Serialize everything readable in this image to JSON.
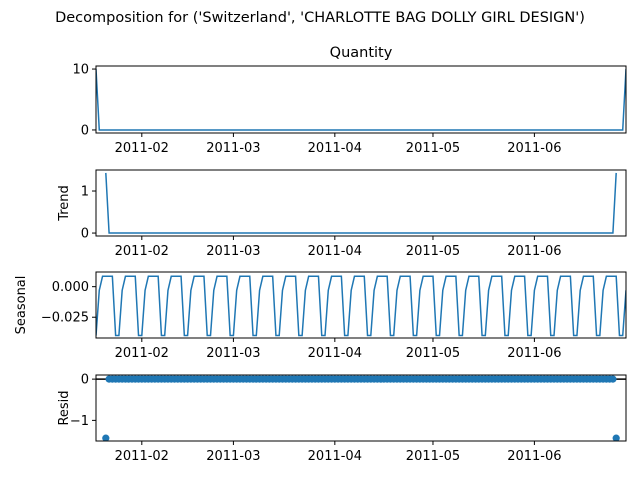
{
  "chart_data": {
    "type": "line",
    "title": "Decomposition for ('Switzerland', 'CHARLOTTE BAG DOLLY GIRL DESIGN')",
    "line_color": "#1f77b4",
    "x_axis": {
      "start": "2011-01-18",
      "end": "2011-06-29",
      "tick_labels": [
        "2011-02",
        "2011-03",
        "2011-04",
        "2011-05",
        "2011-06"
      ],
      "tick_dates": [
        "2011-02-01",
        "2011-03-01",
        "2011-04-01",
        "2011-05-01",
        "2011-06-01"
      ]
    },
    "panels": [
      {
        "id": "observed",
        "title": "Quantity",
        "ylabel": "",
        "kind": "line",
        "ylim": [
          -0.5,
          10.5
        ],
        "yticks": [
          0,
          10
        ],
        "series": [
          {
            "x": "2011-01-18",
            "y": 10
          },
          {
            "x": "2011-01-19",
            "y": 0
          },
          {
            "x": "2011-06-28",
            "y": 0
          },
          {
            "x": "2011-06-29",
            "y": 10
          }
        ]
      },
      {
        "id": "trend",
        "title": "",
        "ylabel": "Trend",
        "kind": "line",
        "ylim": [
          -0.07,
          1.5
        ],
        "yticks": [
          0,
          1
        ],
        "series": [
          {
            "x": "2011-01-21",
            "y": 1.43
          },
          {
            "x": "2011-01-22",
            "y": 0
          },
          {
            "x": "2011-06-25",
            "y": 0
          },
          {
            "x": "2011-06-26",
            "y": 1.43
          }
        ]
      },
      {
        "id": "seasonal",
        "title": "",
        "ylabel": "Seasonal",
        "kind": "seasonal",
        "ylim": [
          -0.042,
          0.012
        ],
        "yticks": [
          0.0,
          -0.025
        ],
        "ytick_labels": [
          "0.000",
          "−0.025"
        ],
        "period_days": 7,
        "cycle": [
          -0.04,
          -0.003,
          0.0085,
          0.0085,
          0.0085,
          0.0085,
          -0.04
        ]
      },
      {
        "id": "resid",
        "title": "",
        "ylabel": "Resid",
        "kind": "scatter",
        "ylim": [
          -1.5,
          0.1
        ],
        "yticks": [
          0,
          -1
        ],
        "ytick_labels": [
          "0",
          "−1"
        ],
        "zero_line": true,
        "outliers": [
          {
            "x": "2011-01-21",
            "y": -1.43
          },
          {
            "x": "2011-06-26",
            "y": -1.43
          }
        ],
        "baseline": {
          "start": "2011-01-22",
          "end": "2011-06-25",
          "y": 0
        }
      }
    ]
  }
}
